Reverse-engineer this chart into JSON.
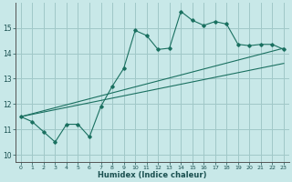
{
  "title": "",
  "xlabel": "Humidex (Indice chaleur)",
  "background_color": "#c8e8e8",
  "grid_color": "#a0c8c8",
  "line_color": "#1a7060",
  "xlim": [
    -0.5,
    23.5
  ],
  "ylim": [
    9.7,
    16.0
  ],
  "xticks": [
    0,
    1,
    2,
    3,
    4,
    5,
    6,
    7,
    8,
    9,
    10,
    11,
    12,
    13,
    14,
    15,
    16,
    17,
    18,
    19,
    20,
    21,
    22,
    23
  ],
  "yticks": [
    10,
    11,
    12,
    13,
    14,
    15
  ],
  "series1_x": [
    0,
    1,
    2,
    3,
    4,
    5,
    6,
    7,
    8,
    9,
    10,
    11,
    12,
    13,
    14,
    15,
    16,
    17,
    18,
    19,
    20,
    21,
    22,
    23
  ],
  "series1_y": [
    11.5,
    11.3,
    10.9,
    10.5,
    11.2,
    11.2,
    10.7,
    11.9,
    12.7,
    13.4,
    14.9,
    14.7,
    14.15,
    14.2,
    15.65,
    15.3,
    15.1,
    15.25,
    15.15,
    14.35,
    14.3,
    14.35,
    14.35,
    14.15
  ],
  "series2_x": [
    0,
    23
  ],
  "series2_y": [
    11.5,
    13.6
  ],
  "series3_x": [
    0,
    23
  ],
  "series3_y": [
    11.5,
    14.2
  ]
}
